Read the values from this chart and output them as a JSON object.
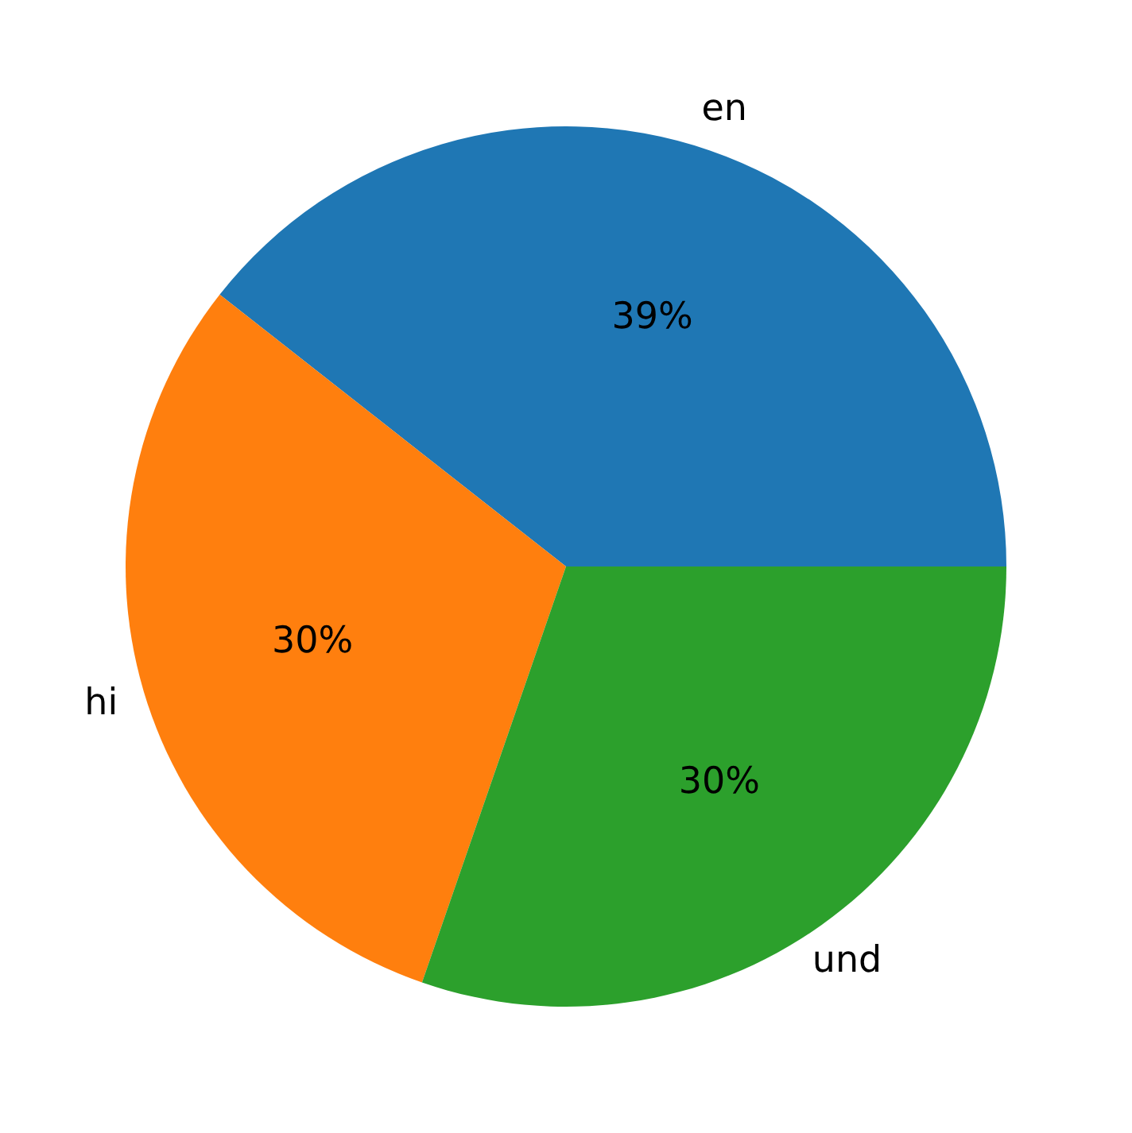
{
  "chart_data": {
    "type": "pie",
    "categories": [
      "en",
      "hi",
      "und"
    ],
    "values": [
      39.4,
      30.3,
      30.3
    ],
    "value_labels": [
      "39%",
      "30%",
      "30%"
    ],
    "colors": [
      "#1f77b4",
      "#ff7f0e",
      "#2ca02c"
    ]
  }
}
